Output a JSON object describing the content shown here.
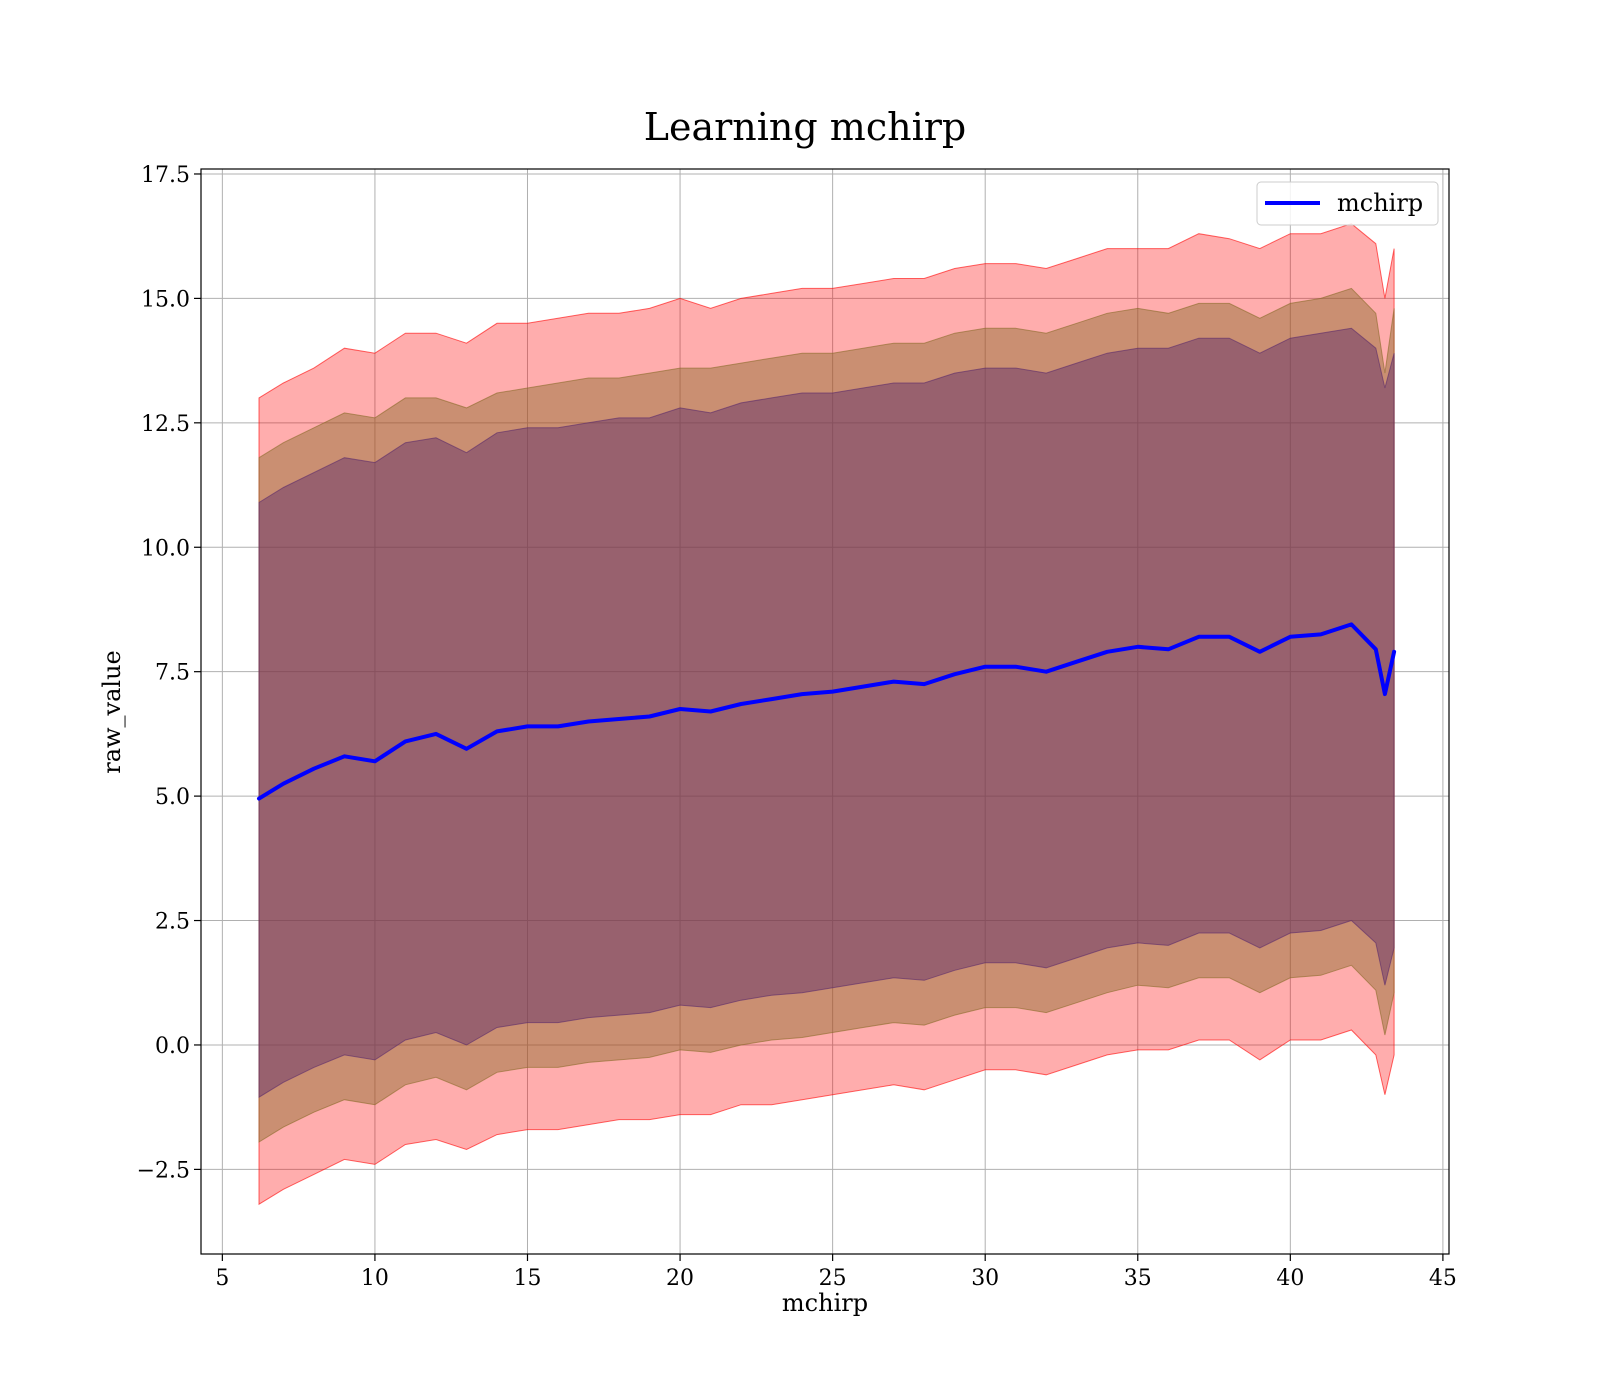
{
  "chart_data": {
    "type": "area",
    "title": "Learning mchirp",
    "xlabel": "mchirp",
    "ylabel": "raw_value",
    "xlim": [
      4.3,
      45.2
    ],
    "ylim": [
      -4.2,
      17.6
    ],
    "xticks": [
      5,
      10,
      15,
      20,
      25,
      30,
      35,
      40,
      45
    ],
    "xtick_labels": [
      "5",
      "10",
      "15",
      "20",
      "25",
      "30",
      "35",
      "40",
      "45"
    ],
    "yticks": [
      -2.5,
      0.0,
      2.5,
      5.0,
      7.5,
      10.0,
      12.5,
      15.0,
      17.5
    ],
    "ytick_labels": [
      "−2.5",
      "0.0",
      "2.5",
      "5.0",
      "7.5",
      "10.0",
      "12.5",
      "15.0",
      "17.5"
    ],
    "grid": true,
    "legend": {
      "position": "top-right",
      "entries": [
        "mchirp"
      ]
    },
    "line_color": "#0000ff",
    "band_colors": {
      "outer": "#ff0000",
      "middle": "#8a6a2a",
      "inner": "#5a2a6a"
    },
    "x": [
      6.2,
      7,
      8,
      9,
      10,
      11,
      12,
      13,
      14,
      15,
      16,
      17,
      18,
      19,
      20,
      21,
      22,
      23,
      24,
      25,
      26,
      27,
      28,
      29,
      30,
      31,
      32,
      33,
      34,
      35,
      36,
      37,
      38,
      39,
      40,
      41,
      42,
      42.8,
      43.1,
      43.4
    ],
    "series": [
      {
        "name": "mchirp",
        "values": [
          4.95,
          5.25,
          5.55,
          5.8,
          5.7,
          6.1,
          6.25,
          5.95,
          6.3,
          6.4,
          6.4,
          6.5,
          6.55,
          6.6,
          6.75,
          6.7,
          6.85,
          6.95,
          7.05,
          7.1,
          7.2,
          7.3,
          7.25,
          7.45,
          7.6,
          7.6,
          7.5,
          7.7,
          7.9,
          8.0,
          7.95,
          8.2,
          8.2,
          7.9,
          8.2,
          8.25,
          8.45,
          7.95,
          7.05,
          7.9
        ]
      }
    ],
    "bands": [
      {
        "level": "outer",
        "upper": [
          13.0,
          13.3,
          13.6,
          14.0,
          13.9,
          14.3,
          14.3,
          14.1,
          14.5,
          14.5,
          14.6,
          14.7,
          14.7,
          14.8,
          15.0,
          14.8,
          15.0,
          15.1,
          15.2,
          15.2,
          15.3,
          15.4,
          15.4,
          15.6,
          15.7,
          15.7,
          15.6,
          15.8,
          16.0,
          16.0,
          16.0,
          16.3,
          16.2,
          16.0,
          16.3,
          16.3,
          16.5,
          16.1,
          15.0,
          16.0
        ],
        "lower": [
          -3.2,
          -2.9,
          -2.6,
          -2.3,
          -2.4,
          -2.0,
          -1.9,
          -2.1,
          -1.8,
          -1.7,
          -1.7,
          -1.6,
          -1.5,
          -1.5,
          -1.4,
          -1.4,
          -1.2,
          -1.2,
          -1.1,
          -1.0,
          -0.9,
          -0.8,
          -0.9,
          -0.7,
          -0.5,
          -0.5,
          -0.6,
          -0.4,
          -0.2,
          -0.1,
          -0.1,
          0.1,
          0.1,
          -0.3,
          0.1,
          0.1,
          0.3,
          -0.2,
          -1.0,
          -0.2
        ]
      },
      {
        "level": "middle",
        "upper": [
          11.8,
          12.1,
          12.4,
          12.7,
          12.6,
          13.0,
          13.0,
          12.8,
          13.1,
          13.2,
          13.3,
          13.4,
          13.4,
          13.5,
          13.6,
          13.6,
          13.7,
          13.8,
          13.9,
          13.9,
          14.0,
          14.1,
          14.1,
          14.3,
          14.4,
          14.4,
          14.3,
          14.5,
          14.7,
          14.8,
          14.7,
          14.9,
          14.9,
          14.6,
          14.9,
          15.0,
          15.2,
          14.7,
          13.5,
          14.8
        ],
        "lower": [
          -1.95,
          -1.65,
          -1.35,
          -1.1,
          -1.2,
          -0.8,
          -0.65,
          -0.9,
          -0.55,
          -0.45,
          -0.45,
          -0.35,
          -0.3,
          -0.25,
          -0.1,
          -0.15,
          0.0,
          0.1,
          0.15,
          0.25,
          0.35,
          0.45,
          0.4,
          0.6,
          0.75,
          0.75,
          0.65,
          0.85,
          1.05,
          1.2,
          1.15,
          1.35,
          1.35,
          1.05,
          1.35,
          1.4,
          1.6,
          1.1,
          0.2,
          1.05
        ]
      },
      {
        "level": "inner",
        "upper": [
          10.9,
          11.2,
          11.5,
          11.8,
          11.7,
          12.1,
          12.2,
          11.9,
          12.3,
          12.4,
          12.4,
          12.5,
          12.6,
          12.6,
          12.8,
          12.7,
          12.9,
          13.0,
          13.1,
          13.1,
          13.2,
          13.3,
          13.3,
          13.5,
          13.6,
          13.6,
          13.5,
          13.7,
          13.9,
          14.0,
          14.0,
          14.2,
          14.2,
          13.9,
          14.2,
          14.3,
          14.4,
          14.0,
          13.2,
          13.9
        ],
        "lower": [
          -1.05,
          -0.75,
          -0.45,
          -0.2,
          -0.3,
          0.1,
          0.25,
          0.0,
          0.35,
          0.45,
          0.45,
          0.55,
          0.6,
          0.65,
          0.8,
          0.75,
          0.9,
          1.0,
          1.05,
          1.15,
          1.25,
          1.35,
          1.3,
          1.5,
          1.65,
          1.65,
          1.55,
          1.75,
          1.95,
          2.05,
          2.0,
          2.25,
          2.25,
          1.95,
          2.25,
          2.3,
          2.5,
          2.05,
          1.2,
          1.95
        ]
      }
    ]
  }
}
